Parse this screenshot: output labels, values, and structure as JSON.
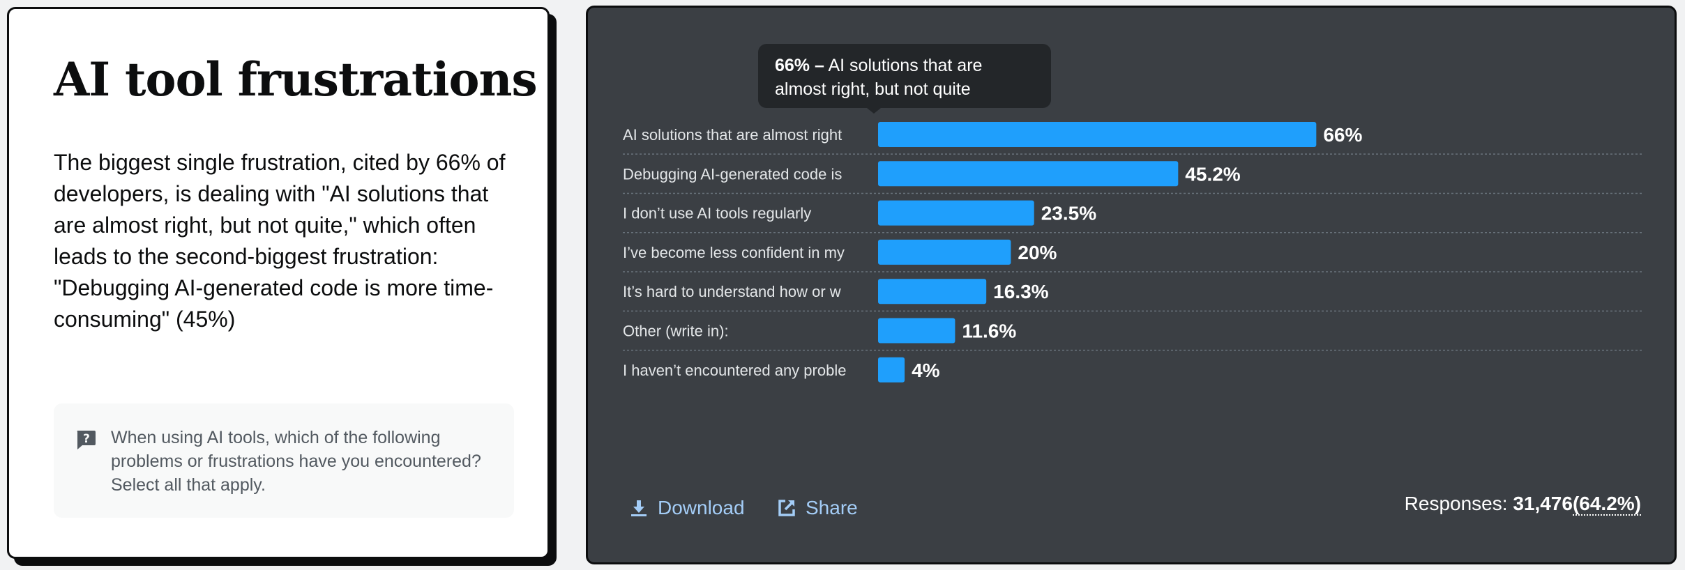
{
  "left_panel": {
    "title": "AI tool frustrations",
    "body": "The biggest single frustration, cited by 66% of developers, is dealing with \"AI solutions that are almost right, but not quite,\" which often leads to the second-biggest frustration: \"Debugging AI-generated code is more time-consuming\" (45%)",
    "question": "When using AI tools, which of the following problems or frustrations have you encountered? Select all that apply.",
    "question_icon": "question-icon"
  },
  "tooltip": {
    "value": "66% –",
    "text": "AI solutions that are almost right, but not quite"
  },
  "chart_data": {
    "type": "bar",
    "orientation": "horizontal",
    "categories": [
      "AI solutions that are almost right",
      "Debugging AI-generated code is",
      "I don’t use AI tools regularly",
      "I’ve become less confident in my",
      "It’s hard to understand how or w",
      "Other (write in):",
      "I haven’t encountered any proble"
    ],
    "values": [
      66,
      45.2,
      23.5,
      20,
      16.3,
      11.6,
      4
    ],
    "value_labels": [
      "66%",
      "45.2%",
      "23.5%",
      "20%",
      "16.3%",
      "11.6%",
      "4%"
    ],
    "unit": "%",
    "xlim": [
      0,
      100
    ],
    "grid": false,
    "bar_color": "#1f9ffc"
  },
  "footer": {
    "download_label": "Download",
    "share_label": "Share",
    "responses_label": "Responses:",
    "responses_count": "31,476",
    "responses_pct": "(64.2%)"
  },
  "colors": {
    "card_bg": "#3b3f44",
    "bar": "#1f9ffc",
    "link": "#a4cdf7",
    "tooltip_bg": "#232629"
  }
}
